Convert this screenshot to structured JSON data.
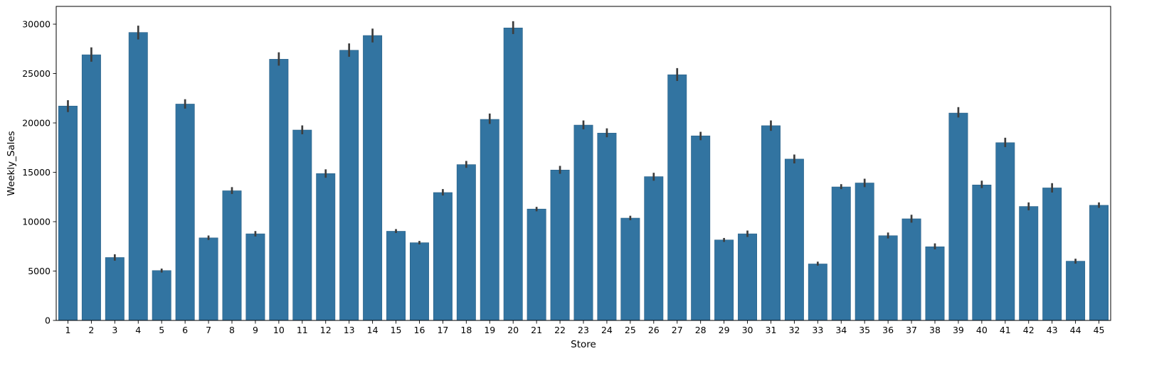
{
  "chart_data": {
    "type": "bar",
    "xlabel": "Store",
    "ylabel": "Weekly_Sales",
    "ylim": [
      0,
      31800
    ],
    "yticks": [
      0,
      5000,
      10000,
      15000,
      20000,
      25000,
      30000
    ],
    "grid": false,
    "error_bars": true,
    "bar_color": "#3274a1",
    "errorbar_color": "#3d3d3d",
    "categories": [
      "1",
      "2",
      "3",
      "4",
      "5",
      "6",
      "7",
      "8",
      "9",
      "10",
      "11",
      "12",
      "13",
      "14",
      "15",
      "16",
      "17",
      "18",
      "19",
      "20",
      "21",
      "22",
      "23",
      "24",
      "25",
      "26",
      "27",
      "28",
      "29",
      "30",
      "31",
      "32",
      "33",
      "34",
      "35",
      "36",
      "37",
      "38",
      "39",
      "40",
      "41",
      "42",
      "43",
      "44",
      "45"
    ],
    "values": [
      21710,
      26900,
      6370,
      29160,
      5050,
      21910,
      8360,
      13130,
      8770,
      26450,
      19280,
      14870,
      27360,
      28850,
      9030,
      7870,
      12950,
      15780,
      20360,
      29620,
      11280,
      15230,
      19780,
      18970,
      10360,
      14560,
      24880,
      18690,
      8150,
      8770,
      19720,
      16340,
      5720,
      13520,
      13920,
      8580,
      10290,
      7460,
      21000,
      13720,
      18000,
      11540,
      13420,
      6000,
      11660
    ],
    "error_low": [
      21100,
      26200,
      6050,
      28450,
      4850,
      21450,
      8150,
      12800,
      8500,
      25800,
      18850,
      14450,
      26700,
      28150,
      8850,
      7700,
      12650,
      15450,
      19900,
      29000,
      11050,
      14850,
      19350,
      18550,
      10150,
      14150,
      24250,
      18250,
      7950,
      8450,
      19200,
      15900,
      5550,
      13300,
      13500,
      8300,
      9900,
      7200,
      20550,
      13400,
      17550,
      11150,
      12950,
      5750,
      11400
    ],
    "error_high": [
      22300,
      27650,
      6700,
      29850,
      5250,
      22400,
      8600,
      13500,
      9050,
      27150,
      19750,
      15300,
      28050,
      29550,
      9250,
      8050,
      13300,
      16150,
      20950,
      30300,
      11500,
      15650,
      20250,
      19450,
      10600,
      14950,
      25550,
      19100,
      8350,
      9100,
      20250,
      16800,
      5950,
      13800,
      14350,
      8900,
      10700,
      7800,
      21600,
      14150,
      18500,
      11950,
      13900,
      6250,
      11950
    ]
  }
}
